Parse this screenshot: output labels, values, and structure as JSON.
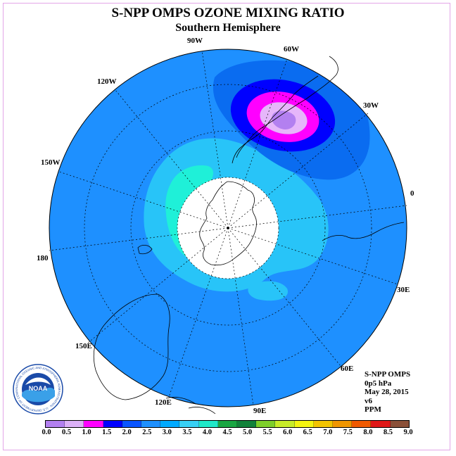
{
  "title": "S-NPP OMPS OZONE MIXING RATIO",
  "subtitle": "Southern Hemisphere",
  "longitude_labels": [
    {
      "text": "90W"
    },
    {
      "text": "60W"
    },
    {
      "text": "30W"
    },
    {
      "text": "0"
    },
    {
      "text": "30E"
    },
    {
      "text": "60E"
    },
    {
      "text": "90E"
    },
    {
      "text": "120E"
    },
    {
      "text": "150E"
    },
    {
      "text": "180"
    },
    {
      "text": "150W"
    },
    {
      "text": "120W"
    }
  ],
  "info": {
    "line1": "S-NPP OMPS",
    "line2": "0p5 hPa",
    "line3": "May 28, 2015",
    "line4": "v6",
    "line5": "PPM"
  },
  "logo": {
    "text": "NOAA",
    "ring_text": "NATIONAL OCEANIC AND ATMOSPHERIC ADMINISTRATION · U.S. DEPARTMENT OF COMMERCE"
  },
  "legend": {
    "labels": [
      "0.0",
      "0.5",
      "1.0",
      "1.5",
      "2.0",
      "2.5",
      "3.0",
      "3.5",
      "4.0",
      "4.5",
      "5.0",
      "5.5",
      "6.0",
      "6.5",
      "7.0",
      "7.5",
      "8.0",
      "8.5",
      "9.0"
    ],
    "colors": [
      "#b380f0",
      "#dcb0f7",
      "#ff00ff",
      "#0000ff",
      "#0a55ff",
      "#1e90ff",
      "#00aaff",
      "#38d0f5",
      "#1fe8c8",
      "#1aa642",
      "#12823a",
      "#7ecf2a",
      "#c8ec28",
      "#f4f410",
      "#f2c400",
      "#f09600",
      "#f05a00",
      "#e01818",
      "#8a5038"
    ]
  },
  "palette": {
    "field": "#1e90ff",
    "ring": "#0a6cf0",
    "light": "#28c4f8",
    "teal": "#1ff0d8",
    "blue": "#0000ff",
    "magenta": "#ff00ff",
    "lav": "#e6b6fa",
    "purple": "#b380f0"
  }
}
